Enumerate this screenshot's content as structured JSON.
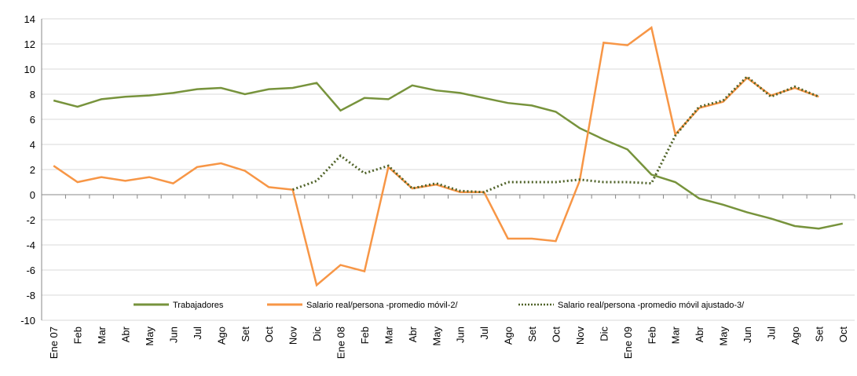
{
  "chart_data": {
    "type": "line",
    "categories": [
      "Ene 07",
      "Feb",
      "Mar",
      "Abr",
      "May",
      "Jun",
      "Jul",
      "Ago",
      "Set",
      "Oct",
      "Nov",
      "Dic",
      "Ene 08",
      "Feb",
      "Mar",
      "Abr",
      "May",
      "Jun",
      "Jul",
      "Ago",
      "Set",
      "Oct",
      "Nov",
      "Dic",
      "Ene 09",
      "Feb",
      "Mar",
      "Abr",
      "May",
      "Jun",
      "Jul",
      "Ago",
      "Set",
      "Oct"
    ],
    "series": [
      {
        "name": "Trabajadores",
        "color": "#77933c",
        "dash": "solid",
        "values": [
          7.5,
          7.0,
          7.6,
          7.8,
          7.9,
          8.1,
          8.4,
          8.5,
          8.0,
          8.4,
          8.5,
          8.9,
          6.7,
          7.7,
          7.6,
          8.7,
          8.3,
          8.1,
          7.7,
          7.3,
          7.1,
          6.6,
          5.3,
          4.4,
          3.6,
          1.6,
          1.0,
          -0.3,
          -0.8,
          -1.4,
          -1.9,
          -2.5,
          -2.7,
          -2.3
        ]
      },
      {
        "name": "Salario real/persona -promedio móvil-2/",
        "color": "#f79646",
        "dash": "solid",
        "values": [
          2.3,
          1.0,
          1.4,
          1.1,
          1.4,
          0.9,
          2.2,
          2.5,
          1.9,
          0.6,
          0.4,
          -7.2,
          -5.6,
          -6.1,
          2.2,
          0.5,
          0.8,
          0.2,
          0.2,
          -3.5,
          -3.5,
          -3.7,
          1.1,
          12.1,
          11.9,
          13.3,
          4.8,
          6.9,
          7.4,
          9.3,
          7.9,
          8.5,
          7.8,
          null
        ]
      },
      {
        "name": "Salario real/persona -promedio móvil ajustado-3/",
        "color": "#4f6228",
        "dash": "dotted",
        "values": [
          null,
          null,
          null,
          null,
          null,
          null,
          null,
          null,
          null,
          null,
          0.4,
          1.1,
          3.1,
          1.7,
          2.3,
          0.5,
          0.9,
          0.3,
          0.2,
          1.0,
          1.0,
          1.0,
          1.2,
          1.0,
          1.0,
          0.9,
          4.7,
          7.0,
          7.5,
          9.4,
          7.8,
          8.6,
          7.8,
          null
        ]
      }
    ],
    "ylim": [
      -10,
      14
    ],
    "yticks": [
      -10,
      -8,
      -6,
      -4,
      -2,
      0,
      2,
      4,
      6,
      8,
      10,
      12,
      14
    ],
    "grid": true,
    "legend": "bottom"
  }
}
